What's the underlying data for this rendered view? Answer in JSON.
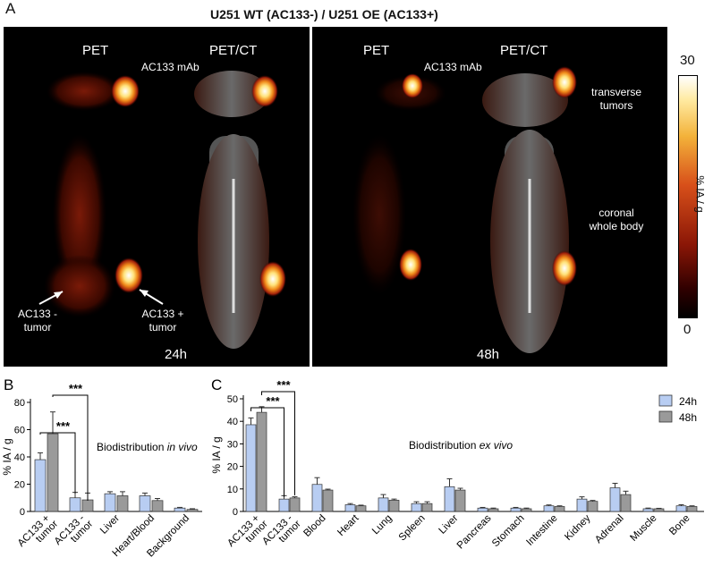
{
  "panel_a": {
    "letter": "A",
    "title": "U251 WT (AC133-) / U251 OE (AC133+)",
    "left": {
      "label_pet": "PET",
      "label_petct": "PET/CT",
      "agent": "AC133 mAb",
      "timepoint": "24h",
      "arrow_neg": "AC133 -\ntumor",
      "arrow_pos": "AC133 +\ntumor"
    },
    "right": {
      "label_pet": "PET",
      "label_petct": "PET/CT",
      "agent": "AC133 mAb",
      "timepoint": "48h",
      "transverse": "transverse\ntumors",
      "coronal": "coronal\nwhole body"
    },
    "colorbar": {
      "max": "30",
      "min": "0",
      "label": "% IA / g"
    }
  },
  "chart_data": [
    {
      "panel": "B",
      "type": "bar",
      "annotation": "Biodistribution",
      "annotation_italic": "in vivo",
      "ylabel": "% IA / g",
      "ylim": [
        0,
        80
      ],
      "yticks": [
        0,
        20,
        40,
        60,
        80
      ],
      "categories": [
        "AC133 +\ntumor",
        "AC133 -\ntumor",
        "Liver",
        "Heart/Blood",
        "Background"
      ],
      "series": [
        {
          "name": "24h",
          "color": "#b8cdf2",
          "values": [
            38,
            10,
            13,
            11.5,
            2.5
          ],
          "errors": [
            5,
            4,
            1.5,
            2,
            0.5
          ]
        },
        {
          "name": "48h",
          "color": "#9a9a9a",
          "values": [
            57,
            8.5,
            11.5,
            8,
            1.5
          ],
          "errors": [
            16,
            5,
            3,
            1.5,
            0.5
          ]
        }
      ],
      "significance": [
        {
          "from": 0,
          "to": 1,
          "label": "***"
        },
        {
          "from": 0,
          "to": 1,
          "label": "***"
        }
      ]
    },
    {
      "panel": "C",
      "type": "bar",
      "annotation": "Biodistribution",
      "annotation_italic": "ex vivo",
      "ylabel": "% IA / g",
      "ylim": [
        0,
        50
      ],
      "yticks": [
        0,
        10,
        20,
        30,
        40,
        50
      ],
      "categories": [
        "AC133 +\ntumor",
        "AC133 -\ntumor",
        "Blood",
        "Heart",
        "Lung",
        "Spleen",
        "Liver",
        "Pancreas",
        "Stomach",
        "Intestine",
        "Kidney",
        "Adrenal",
        "Muscle",
        "Bone"
      ],
      "series": [
        {
          "name": "24h",
          "color": "#b8cdf2",
          "values": [
            38.5,
            5.5,
            12,
            3,
            6,
            3.5,
            11,
            1.5,
            1.5,
            2.5,
            5.5,
            10.5,
            1.2,
            2.5
          ],
          "errors": [
            3,
            1.5,
            3,
            0.5,
            1.5,
            0.8,
            3.5,
            0.3,
            0.3,
            0.4,
            1,
            2,
            0.3,
            0.5
          ]
        },
        {
          "name": "48h",
          "color": "#9a9a9a",
          "values": [
            44,
            6,
            9.5,
            2.5,
            5,
            3.5,
            9.5,
            1.2,
            1.2,
            2.2,
            4.5,
            7.5,
            1.2,
            2.2
          ],
          "errors": [
            2.5,
            0.5,
            0.4,
            0.3,
            0.5,
            0.8,
            0.8,
            0.3,
            0.3,
            0.3,
            0.4,
            1.5,
            0.2,
            0.3
          ]
        }
      ],
      "legend": {
        "position": "top-right",
        "labels": [
          "24h",
          "48h"
        ]
      },
      "significance": [
        {
          "from": 0,
          "to": 1,
          "label": "***"
        },
        {
          "from": 0,
          "to": 1,
          "label": "***"
        }
      ]
    }
  ]
}
